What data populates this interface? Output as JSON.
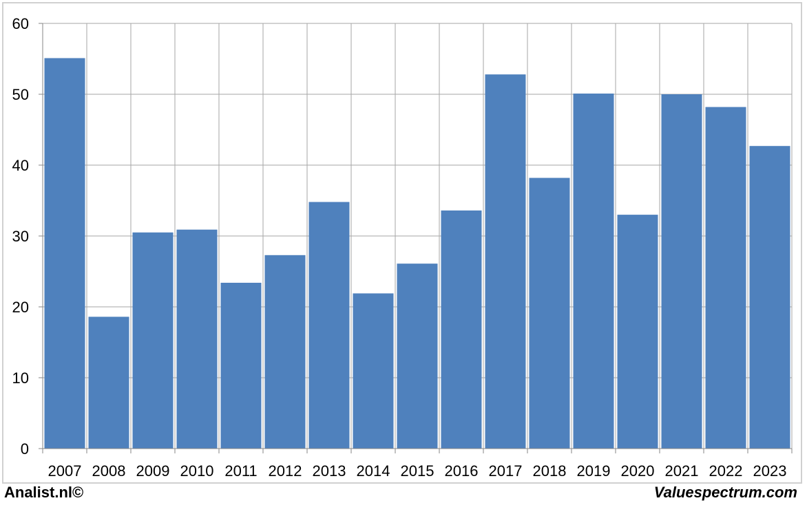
{
  "chart_data": {
    "type": "bar",
    "categories": [
      "2007",
      "2008",
      "2009",
      "2010",
      "2011",
      "2012",
      "2013",
      "2014",
      "2015",
      "2016",
      "2017",
      "2018",
      "2019",
      "2020",
      "2021",
      "2022",
      "2023"
    ],
    "values": [
      55.1,
      18.6,
      30.5,
      30.9,
      23.4,
      27.3,
      34.8,
      21.9,
      26.1,
      33.6,
      52.8,
      38.2,
      50.1,
      33.0,
      50.0,
      48.2,
      42.7
    ],
    "ylim": [
      0,
      60
    ],
    "yticks": [
      0,
      10,
      20,
      30,
      40,
      50,
      60
    ],
    "title": "",
    "xlabel": "",
    "ylabel": "",
    "grid": true,
    "bar_color": "#4f81bd",
    "grid_color": "#a6a6a6"
  },
  "footer": {
    "left": "Analist.nl©",
    "right": "Valuespectrum.com"
  }
}
